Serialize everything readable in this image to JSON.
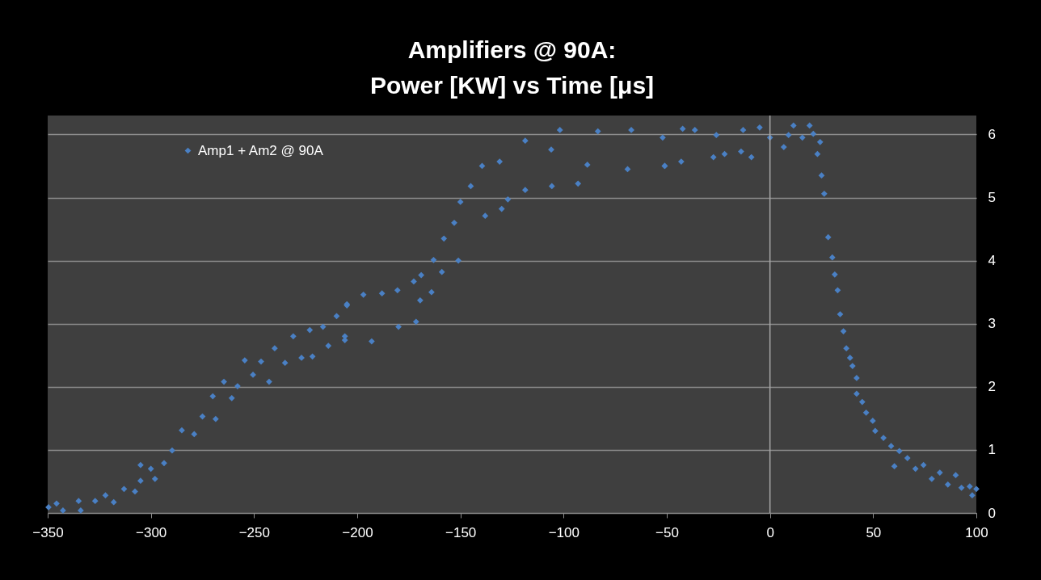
{
  "chart_data": {
    "type": "scatter",
    "title": "Amplifiers @ 90A:\nPower [KW] vs Time [μs]",
    "x": [
      -349.6,
      -345.7,
      -342.6,
      -335,
      -334,
      -327,
      -322,
      -318,
      -313,
      -307.7,
      -305,
      -305,
      -300,
      -298,
      -293.6,
      -289.7,
      -285,
      -279,
      -275,
      -270,
      -268.6,
      -264.6,
      -260.8,
      -258,
      -254.5,
      -250.5,
      -246.6,
      -242.7,
      -240,
      -235,
      -231,
      -227,
      -223,
      -221.7,
      -216.6,
      -214,
      -210,
      -206,
      -206,
      -205,
      -205,
      -197,
      -193,
      -188,
      -180.5,
      -180,
      -172.6,
      -171.5,
      -169.5,
      -169,
      -164,
      -163,
      -159,
      -158,
      -153,
      -151,
      -150,
      -145,
      -139.5,
      -138,
      -131,
      -130,
      -127,
      -118.6,
      -118.6,
      -106,
      -105.7,
      -101.8,
      -93,
      -88.5,
      -83.4,
      -69,
      -67.2,
      -52,
      -51,
      -51,
      -43,
      -42.3,
      -36.4,
      -27.4,
      -26,
      -22,
      -14,
      -13,
      -9,
      -5,
      0,
      6.7,
      9,
      11.4,
      15.7,
      19.2,
      21,
      23,
      24.3,
      25,
      26.3,
      28.2,
      30.2,
      31.4,
      32.8,
      34,
      35.6,
      37,
      38.8,
      40,
      42,
      42,
      44.7,
      46.6,
      49.8,
      51,
      55,
      58.7,
      60.3,
      62.7,
      66.6,
      70.5,
      74.4,
      78.4,
      82.3,
      86.2,
      90,
      92.8,
      96.8,
      98,
      100
    ],
    "series": [
      {
        "name": "Amp1 + Am2 @ 90A",
        "color": "#4a80c4",
        "values": [
          0.09,
          0.15,
          0.04,
          0.19,
          0.04,
          0.19,
          0.28,
          0.17,
          0.38,
          0.34,
          0.51,
          0.76,
          0.7,
          0.54,
          0.79,
          0.99,
          1.31,
          1.25,
          1.53,
          1.85,
          1.49,
          2.08,
          1.82,
          2.01,
          2.42,
          2.19,
          2.4,
          2.08,
          2.61,
          2.38,
          2.8,
          2.46,
          2.9,
          2.48,
          2.95,
          2.65,
          3.12,
          2.8,
          2.74,
          3.31,
          3.29,
          3.46,
          2.72,
          3.48,
          3.53,
          2.95,
          3.67,
          3.03,
          3.37,
          3.77,
          3.5,
          4.01,
          3.82,
          4.35,
          4.6,
          4.0,
          4.93,
          5.18,
          5.5,
          4.71,
          5.57,
          4.82,
          4.97,
          5.9,
          5.12,
          5.76,
          5.18,
          6.07,
          5.22,
          5.52,
          6.05,
          5.45,
          6.07,
          5.95,
          5.5,
          5.5,
          5.57,
          6.09,
          6.07,
          5.64,
          5.99,
          5.69,
          5.73,
          6.07,
          5.64,
          6.11,
          5.95,
          5.8,
          5.99,
          6.14,
          5.95,
          6.14,
          6.01,
          5.69,
          5.88,
          5.35,
          5.06,
          4.37,
          4.05,
          3.78,
          3.53,
          3.15,
          2.88,
          2.61,
          2.46,
          2.33,
          2.14,
          1.89,
          1.76,
          1.59,
          1.46,
          1.3,
          1.19,
          1.06,
          0.74,
          0.98,
          0.87,
          0.7,
          0.76,
          0.54,
          0.64,
          0.45,
          0.6,
          0.4,
          0.42,
          0.28,
          0.38
        ]
      }
    ],
    "xlim": [
      -350,
      100
    ],
    "xticks": [
      -350,
      -300,
      -250,
      -200,
      -150,
      -100,
      -50,
      0,
      50,
      100
    ],
    "ylim": [
      0,
      6.3
    ],
    "yticks": [
      0,
      1,
      2,
      3,
      4,
      5,
      6
    ],
    "ref_lines": [
      {
        "axis": "x",
        "value": 0,
        "color": "#a6a6a6"
      }
    ],
    "grid": "y",
    "legend": "top left",
    "marker": "diamond"
  }
}
